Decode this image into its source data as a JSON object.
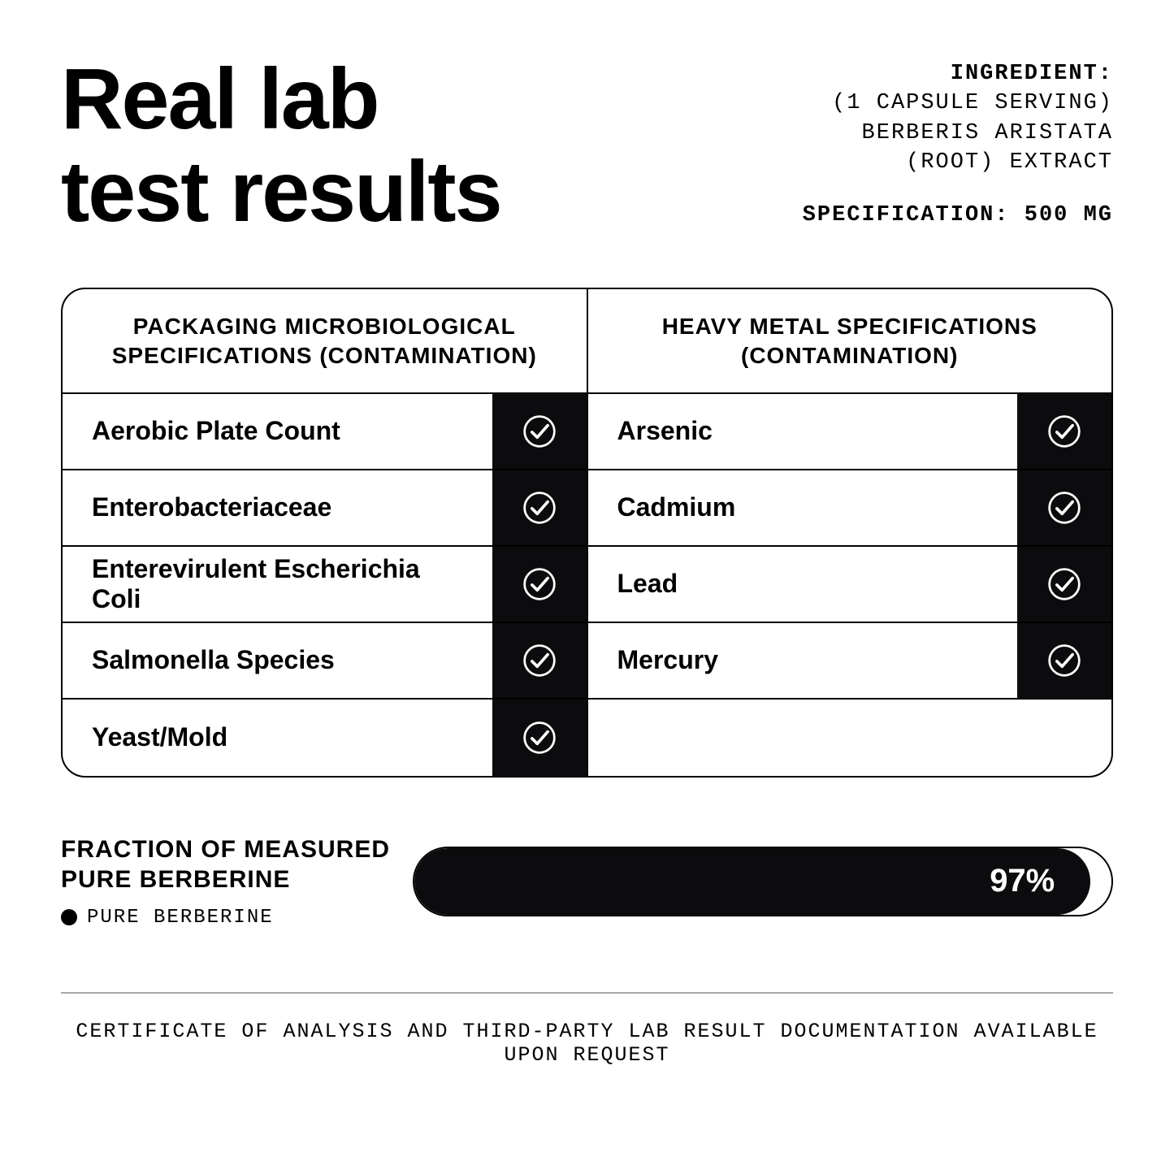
{
  "colors": {
    "background": "#ffffff",
    "text": "#000000",
    "dark_fill": "#0c0c0e",
    "rule": "#a7a7ad"
  },
  "title_line1": "Real lab",
  "title_line2": "test results",
  "ingredient": {
    "label": "INGREDIENT:",
    "serving": "(1 CAPSULE SERVING)",
    "name": "BERBERIS ARISTATA",
    "part": "(ROOT) EXTRACT",
    "specification": "SPECIFICATION: 500 MG"
  },
  "table": {
    "left_header": "PACKAGING MICROBIOLOGICAL SPECIFICATIONS (CONTAMINATION)",
    "right_header": "HEAVY METAL SPECIFICATIONS (CONTAMINATION)",
    "left_rows": [
      "Aerobic Plate Count",
      "Enterobacteriaceae",
      "Enterevirulent Escherichia Coli",
      "Salmonella Species",
      "Yeast/Mold"
    ],
    "right_rows": [
      "Arsenic",
      "Cadmium",
      "Lead",
      "Mercury",
      ""
    ]
  },
  "fraction": {
    "title_line1": "FRACTION OF MEASURED",
    "title_line2": "PURE BERBERINE",
    "legend_label": "PURE BERBERINE",
    "percent": 97,
    "percent_label": "97%"
  },
  "footer": "CERTIFICATE OF ANALYSIS AND THIRD-PARTY LAB RESULT DOCUMENTATION AVAILABLE UPON REQUEST"
}
